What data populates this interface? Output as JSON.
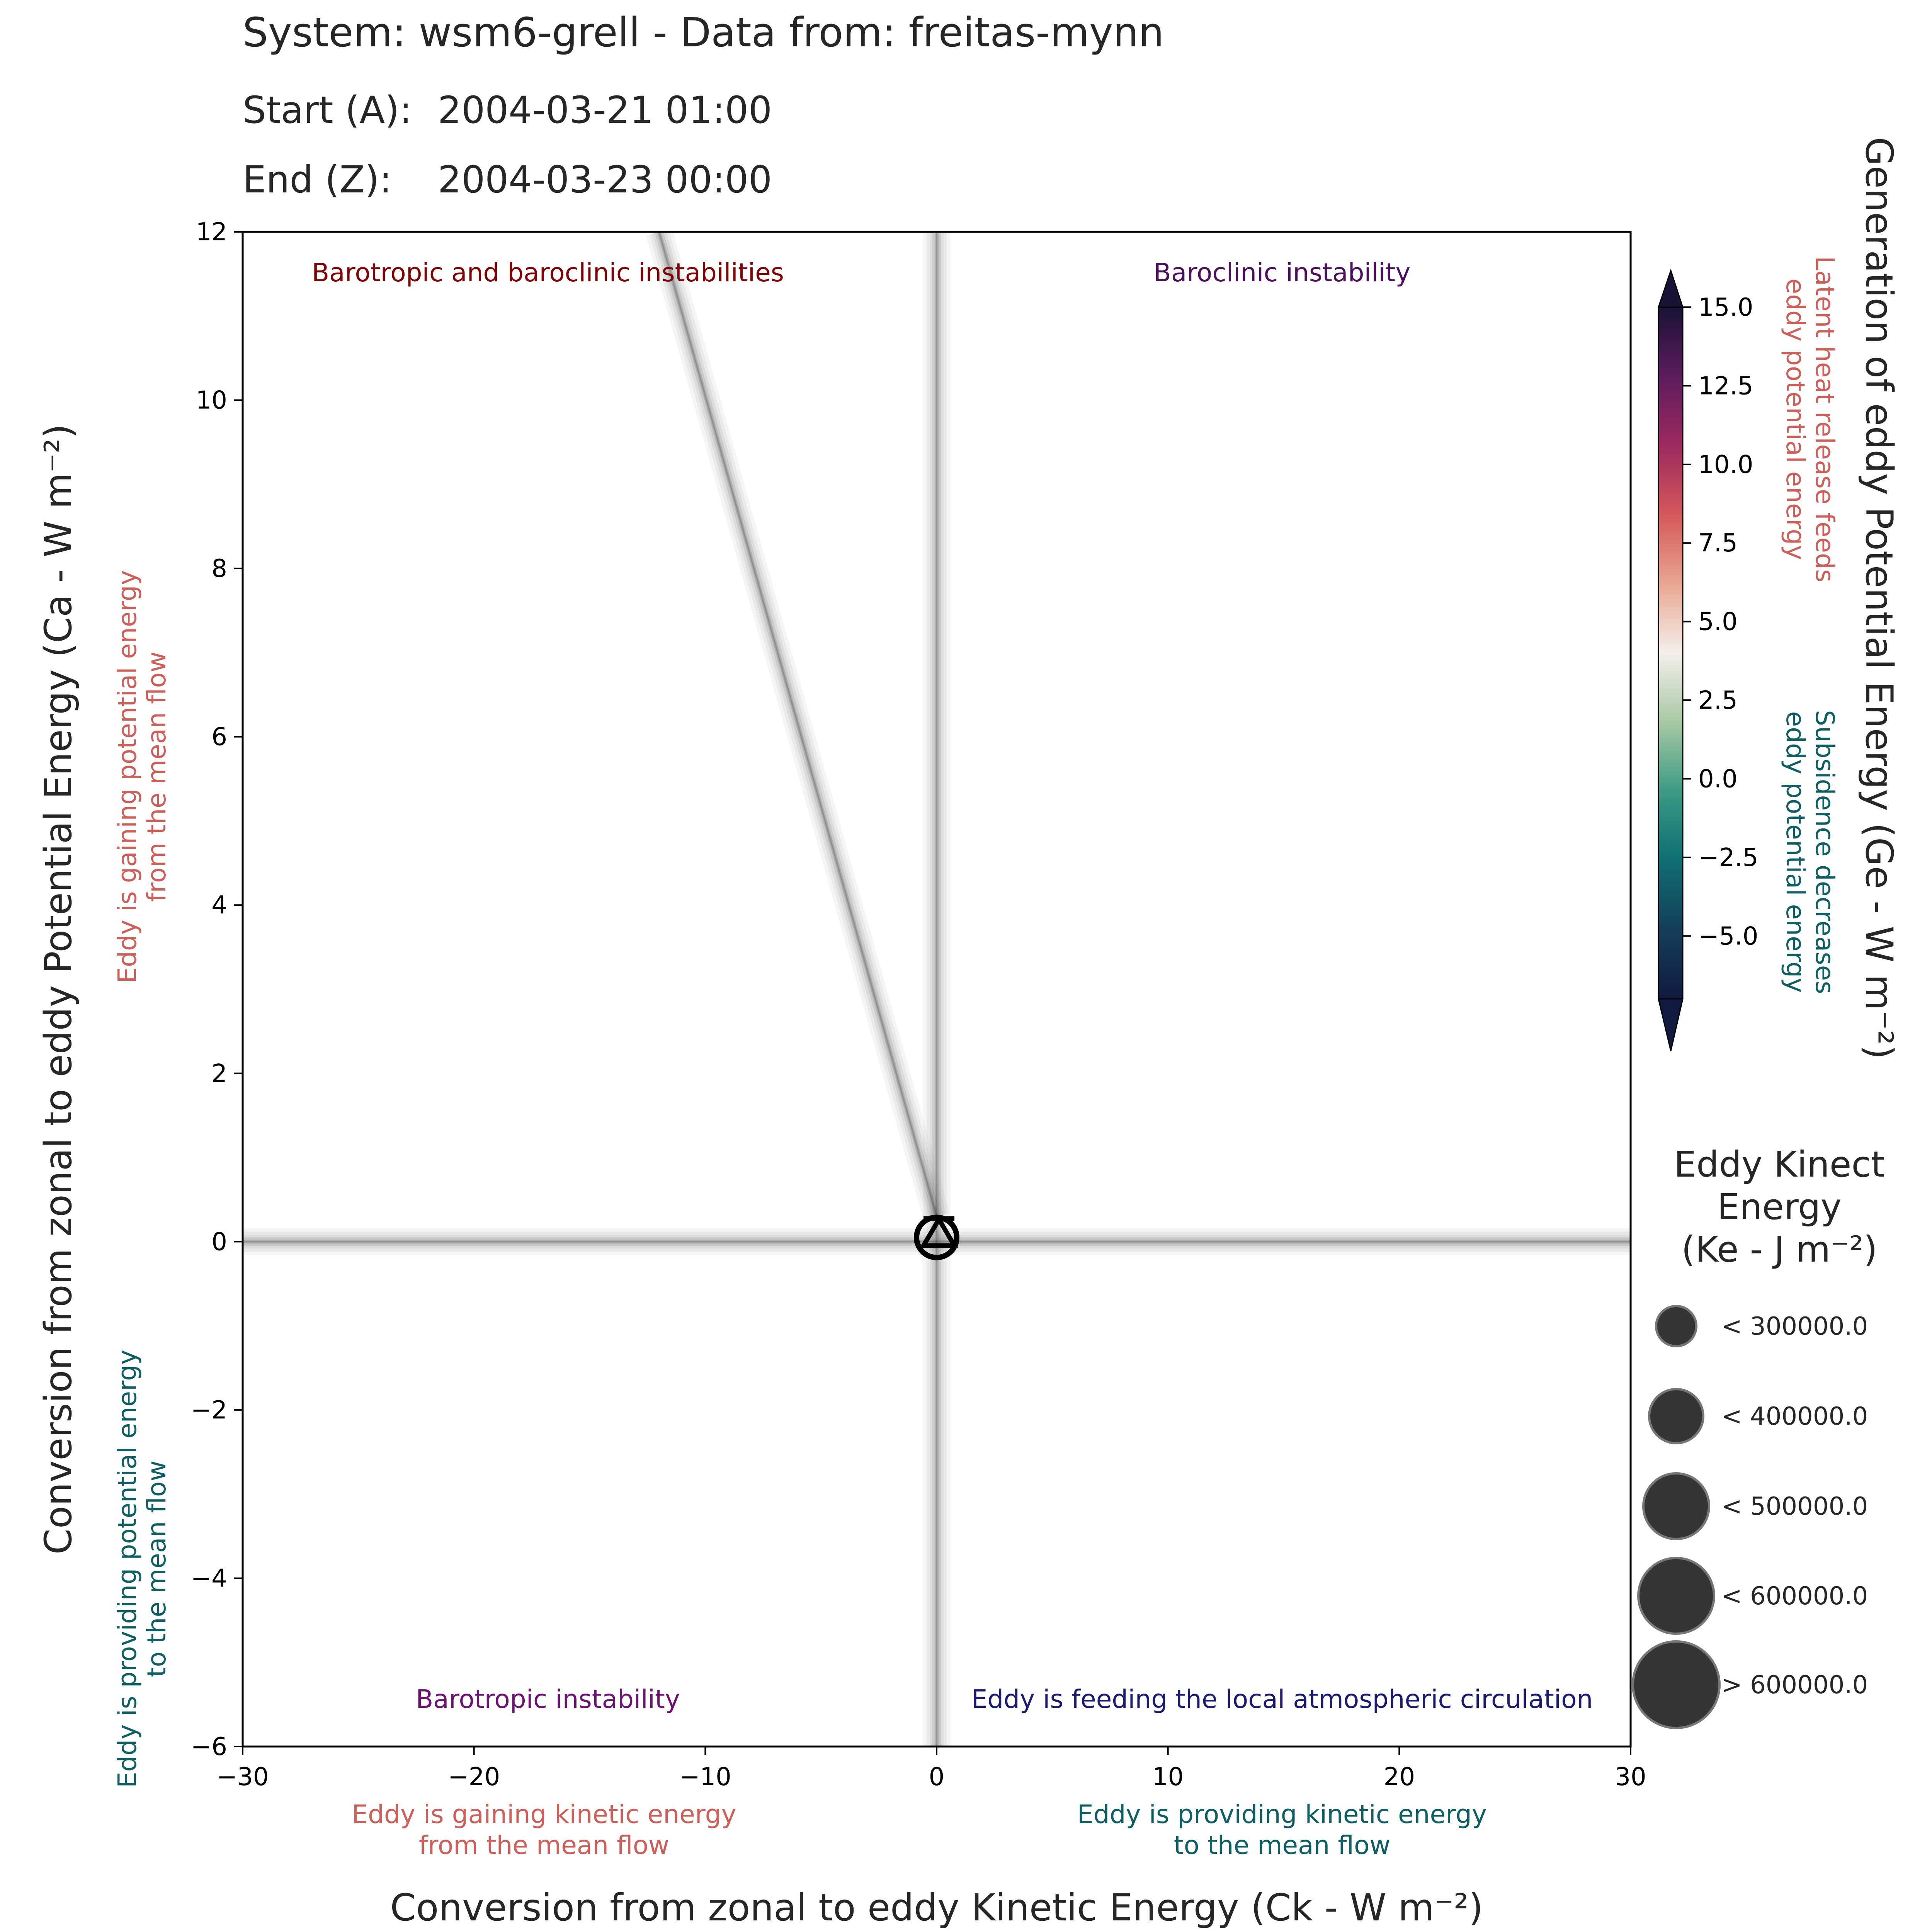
{
  "header": {
    "title": "System: wsm6-grell - Data from: freitas-mynn",
    "start_label": "Start (A):",
    "start_value": "2004-03-21 01:00",
    "end_label": "End (Z):",
    "end_value": "2004-03-23 00:00"
  },
  "chart_data": {
    "type": "scatter",
    "xlabel": "Conversion from zonal to eddy Kinetic Energy (Ck -  W m⁻²)",
    "ylabel": "Conversion from zonal to eddy Potential Energy (Ca -  W m⁻²)",
    "xlim": [
      -30,
      30
    ],
    "ylim": [
      -6,
      12
    ],
    "xticks": [
      -30,
      -20,
      -10,
      0,
      10,
      20,
      30
    ],
    "xtick_labels": [
      "−30",
      "−20",
      "−10",
      "0",
      "10",
      "20",
      "30"
    ],
    "yticks": [
      -6,
      -4,
      -2,
      0,
      2,
      4,
      6,
      8,
      10,
      12
    ],
    "ytick_labels": [
      "−6",
      "−4",
      "−2",
      "0",
      "2",
      "4",
      "6",
      "8",
      "10",
      "12"
    ],
    "grid": false,
    "points": [
      {
        "marker": "A",
        "x": 0.0,
        "y": 0.05
      },
      {
        "marker": "Z",
        "x": 0.1,
        "y": 0.1
      }
    ],
    "trend_lines": [
      {
        "x1": -12,
        "y1": 12,
        "x2": 0,
        "y2": 0.3
      },
      {
        "x1": 0,
        "y1": -6,
        "x2": 0,
        "y2": 12
      },
      {
        "x1": -30,
        "y1": 0,
        "x2": 30,
        "y2": 0
      }
    ],
    "quadrant_labels": {
      "top_left": "Barotropic and baroclinic instabilities",
      "top_right": "Baroclinic instability",
      "bottom_left": "Barotropic instability",
      "bottom_right": "Eddy is feeding the local atmospheric circulation"
    },
    "quadrant_label_colors": {
      "top_left": "#7f0000",
      "top_right": "#4b0f5b",
      "bottom_left": "#6a1370",
      "bottom_right": "#1a1a6e"
    },
    "x_annotations": {
      "negative": [
        "Eddy is gaining kinetic energy",
        "from the mean flow"
      ],
      "positive": [
        "Eddy is providing kinetic energy",
        "to the mean flow"
      ]
    },
    "y_annotations": {
      "positive": [
        "Eddy is gaining potential energy",
        "from the mean flow"
      ],
      "negative": [
        "Eddy is providing potential energy",
        "to the mean flow"
      ]
    },
    "annotation_colors": {
      "warm": "#cc5f5a",
      "cool": "#0f5e63"
    },
    "colorbar": {
      "label": "Generation of eddy Potential Energy (Ge -  W m⁻²)",
      "ticks": [
        15.0,
        12.5,
        10.0,
        7.5,
        5.0,
        2.5,
        0.0,
        -2.5,
        -5.0
      ],
      "tick_labels": [
        "15.0",
        "12.5",
        "10.0",
        "7.5",
        "5.0",
        "2.5",
        "0.0",
        "−2.5",
        "−5.0"
      ],
      "vmin": -7,
      "vmax": 15,
      "annotation_positive": [
        "Latent heat release feeds",
        "eddy potential energy"
      ],
      "annotation_negative": [
        "Subsidence decreases",
        "eddy potential energy"
      ],
      "colors": [
        "#1a1236",
        "#5c1c5e",
        "#9e2a5f",
        "#d4585a",
        "#e9a68f",
        "#f4efeb",
        "#a8c8a4",
        "#3c9a84",
        "#0f6e73",
        "#143e5a",
        "#111a40"
      ]
    },
    "size_legend": {
      "title": [
        "Eddy Kinect",
        "Energy",
        "(Ke -  J m⁻²)"
      ],
      "entries": [
        "< 300000.0",
        "< 400000.0",
        "< 500000.0",
        "< 600000.0",
        "> 600000.0"
      ]
    }
  }
}
